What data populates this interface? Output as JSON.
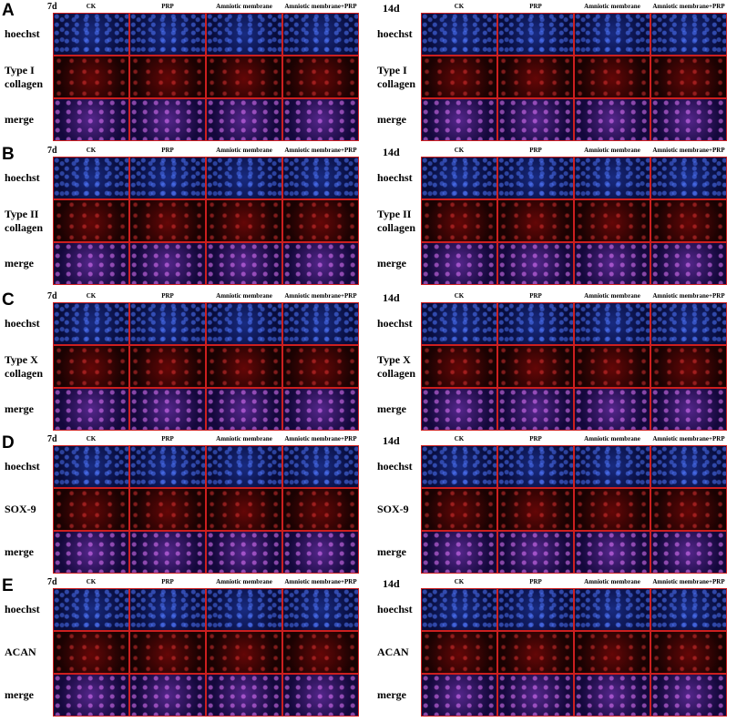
{
  "columns": [
    "CK",
    "PRP",
    "Amniotic membrane",
    "Amniotic membrane+PRP"
  ],
  "panels": [
    {
      "letter": "A",
      "left_day": "7d",
      "right_day": "14d",
      "rows": [
        "hoechst",
        "Type I\ncollagen",
        "merge"
      ]
    },
    {
      "letter": "B",
      "left_day": "7d",
      "right_day": "14d",
      "rows": [
        "hoechst",
        "Type II\ncollagen",
        "merge"
      ]
    },
    {
      "letter": "C",
      "left_day": "7d",
      "right_day": "14d",
      "rows": [
        "hoechst",
        "Type X\ncollagen",
        "merge"
      ]
    },
    {
      "letter": "D",
      "left_day": "7d",
      "right_day": "14d",
      "rows": [
        "hoechst",
        "SOX-9",
        "merge"
      ]
    },
    {
      "letter": "E",
      "left_day": "7d",
      "right_day": "14d",
      "rows": [
        "hoechst",
        "ACAN",
        "merge"
      ]
    }
  ],
  "colors": {
    "grid_border": "#cc1f1f",
    "hoechst": "blue",
    "stain": "red",
    "merge": "magenta"
  }
}
